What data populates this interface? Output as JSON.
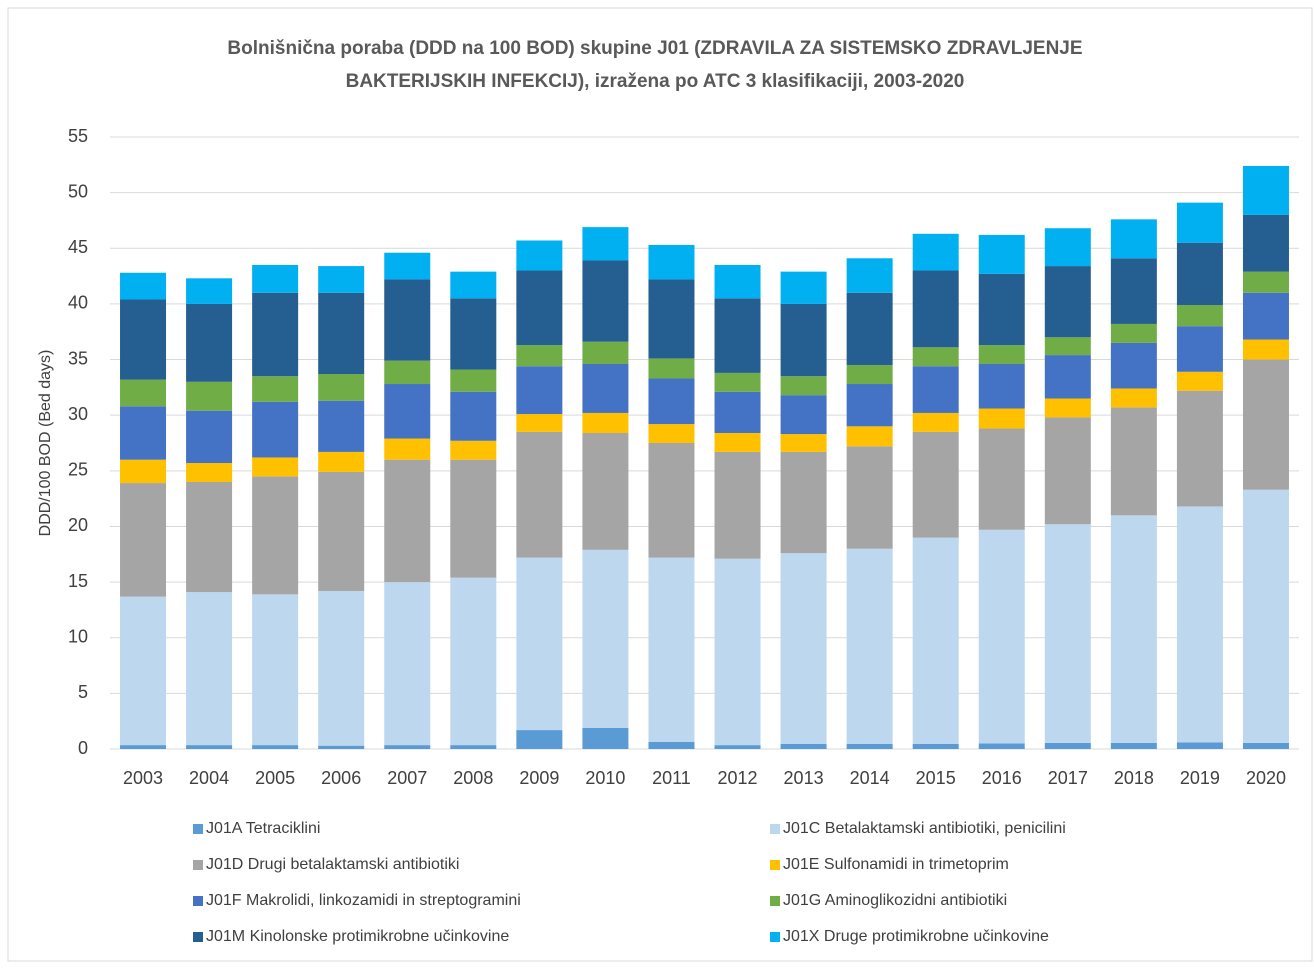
{
  "chart_data": {
    "type": "stacked_bar",
    "title": [
      "Bolnišnična poraba (DDD na 100 BOD) skupine J01 (ZDRAVILA ZA SISTEMSKO ZDRAVLJENJE",
      "BAKTERIJSKIH INFEKCIJ), izražena po ATC 3 klasifikaciji, 2003-2020"
    ],
    "y_label": "DDD/100 BOD (Bed days)",
    "categories": [
      "2003",
      "2004",
      "2005",
      "2006",
      "2007",
      "2008",
      "2009",
      "2010",
      "2011",
      "2012",
      "2013",
      "2014",
      "2015",
      "2016",
      "2017",
      "2018",
      "2019",
      "2020"
    ],
    "series": [
      {
        "name": "J01A Tetraciklini",
        "color": "#5b9bd5",
        "values": [
          0.35,
          0.35,
          0.35,
          0.3,
          0.35,
          0.35,
          1.7,
          1.9,
          0.65,
          0.35,
          0.45,
          0.45,
          0.45,
          0.5,
          0.55,
          0.55,
          0.6,
          0.55
        ]
      },
      {
        "name": "J01C Betalaktamski antibiotiki, penicilini",
        "color": "#bdd7ee",
        "values": [
          13.35,
          13.75,
          13.55,
          13.9,
          14.65,
          15.05,
          15.5,
          16.0,
          16.55,
          16.75,
          17.15,
          17.55,
          18.55,
          19.2,
          19.65,
          20.45,
          21.2,
          22.75
        ]
      },
      {
        "name": "J01D Drugi betalaktamski antibiotiki",
        "color": "#a5a5a5",
        "values": [
          10.2,
          9.9,
          10.6,
          10.7,
          11.0,
          10.6,
          11.3,
          10.5,
          10.3,
          9.6,
          9.1,
          9.2,
          9.5,
          9.1,
          9.6,
          9.7,
          10.4,
          11.7
        ]
      },
      {
        "name": "J01E Sulfonamidi in trimetoprim",
        "color": "#ffc000",
        "values": [
          2.1,
          1.7,
          1.7,
          1.8,
          1.9,
          1.7,
          1.6,
          1.8,
          1.7,
          1.7,
          1.6,
          1.8,
          1.7,
          1.8,
          1.7,
          1.7,
          1.7,
          1.8
        ]
      },
      {
        "name": "J01F Makrolidi, linkozamidi in streptogramini",
        "color": "#4472c4",
        "values": [
          4.8,
          4.7,
          5.0,
          4.6,
          4.9,
          4.4,
          4.3,
          4.4,
          4.1,
          3.7,
          3.5,
          3.8,
          4.2,
          4.0,
          3.9,
          4.1,
          4.1,
          4.2
        ]
      },
      {
        "name": "J01G Aminoglikozidni antibiotiki",
        "color": "#70ad47",
        "values": [
          2.4,
          2.6,
          2.3,
          2.4,
          2.1,
          2.0,
          1.9,
          2.0,
          1.8,
          1.7,
          1.7,
          1.7,
          1.7,
          1.7,
          1.6,
          1.7,
          1.9,
          1.9
        ]
      },
      {
        "name": "J01M Kinolonske protimikrobne učinkovine",
        "color": "#255e91",
        "values": [
          7.2,
          7.0,
          7.5,
          7.3,
          7.3,
          6.4,
          6.7,
          7.3,
          7.1,
          6.7,
          6.5,
          6.5,
          6.9,
          6.4,
          6.4,
          5.9,
          5.6,
          5.1
        ]
      },
      {
        "name": "J01X Druge protimikrobne učinkovine",
        "color": "#00b0f0",
        "values": [
          2.4,
          2.3,
          2.5,
          2.4,
          2.4,
          2.4,
          2.7,
          3.0,
          3.1,
          3.0,
          2.9,
          3.1,
          3.3,
          3.5,
          3.4,
          3.5,
          3.6,
          4.4
        ]
      }
    ],
    "ylim": [
      0,
      55
    ],
    "yticks": [
      0,
      5,
      10,
      15,
      20,
      25,
      30,
      35,
      40,
      45,
      50,
      55
    ],
    "grid": true,
    "legend": "bottom"
  }
}
